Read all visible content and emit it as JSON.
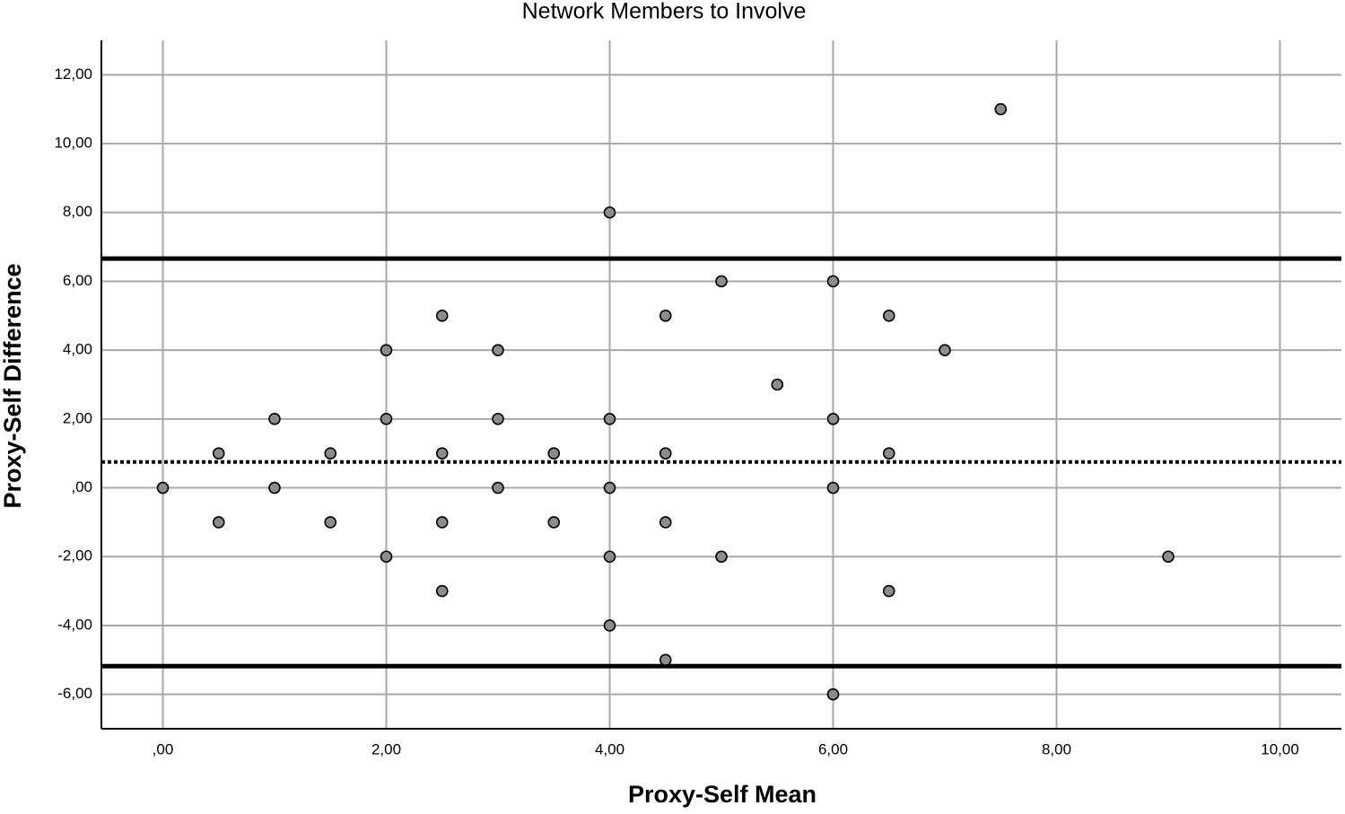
{
  "chart_data": {
    "type": "scatter",
    "title": "Network Members to Involve",
    "x_label": "Proxy-Self Mean",
    "y_label": "Proxy-Self Difference",
    "x": [
      7.5,
      4,
      5,
      6,
      2.5,
      4.5,
      6.5,
      2,
      3,
      7,
      5.5,
      1,
      2,
      3,
      4,
      6,
      0.5,
      1.5,
      2.5,
      3.5,
      4.5,
      6.5,
      0,
      1,
      3,
      4,
      6,
      0.5,
      1.5,
      2.5,
      3.5,
      4.5,
      2,
      4,
      5,
      9,
      2.5,
      6.5,
      4,
      4.5,
      6
    ],
    "values": [
      11,
      8,
      6,
      6,
      5,
      5,
      5,
      4,
      4,
      4,
      3,
      2,
      2,
      2,
      2,
      2,
      1,
      1,
      1,
      1,
      1,
      1,
      0,
      0,
      0,
      0,
      0,
      -1,
      -1,
      -1,
      -1,
      -1,
      -2,
      -2,
      -2,
      -2,
      -3,
      -3,
      -4,
      -5,
      -6
    ],
    "color": "#8c8c8c",
    "xlim": [
      -0.55,
      10.55
    ],
    "ylim": [
      -7,
      13
    ],
    "xticks": [
      {
        "value": 0,
        "label": ",00"
      },
      {
        "value": 2,
        "label": "2,00"
      },
      {
        "value": 4,
        "label": "4,00"
      },
      {
        "value": 6,
        "label": "6,00"
      },
      {
        "value": 8,
        "label": "8,00"
      },
      {
        "value": 10,
        "label": "10,00"
      }
    ],
    "yticks": [
      {
        "value": -6,
        "label": "-6,00"
      },
      {
        "value": -4,
        "label": "-4,00"
      },
      {
        "value": -2,
        "label": "-2,00"
      },
      {
        "value": 0,
        "label": ",00"
      },
      {
        "value": 2,
        "label": "2,00"
      },
      {
        "value": 4,
        "label": "4,00"
      },
      {
        "value": 6,
        "label": "6,00"
      },
      {
        "value": 8,
        "label": "8,00"
      },
      {
        "value": 10,
        "label": "10,00"
      },
      {
        "value": 12,
        "label": "12,00"
      }
    ],
    "grid": true,
    "reference_lines": [
      {
        "value": 6.66,
        "style": "solid"
      },
      {
        "value": 0.75,
        "style": "dotted"
      },
      {
        "value": -5.18,
        "style": "solid"
      }
    ]
  }
}
